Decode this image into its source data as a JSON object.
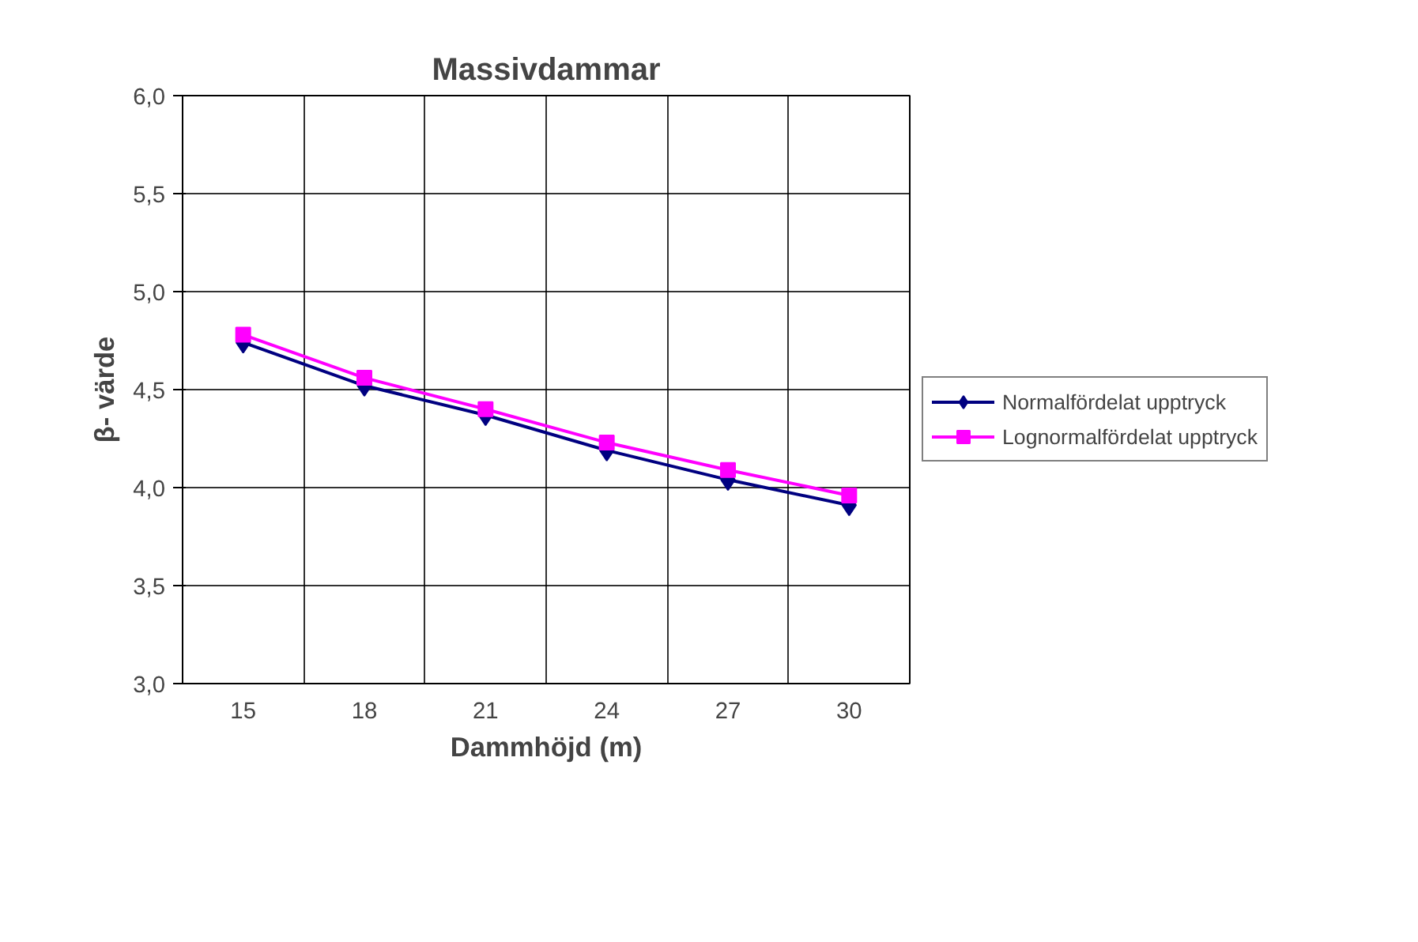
{
  "chart_data": {
    "type": "line",
    "title": "Massivdammar",
    "xlabel": "Dammhöjd (m)",
    "ylabel": "β- värde",
    "categories": [
      "15",
      "18",
      "21",
      "24",
      "27",
      "30"
    ],
    "series": [
      {
        "name": "Normalfördelat upptryck",
        "color": "#000080",
        "marker": "diamond",
        "values": [
          4.74,
          4.52,
          4.37,
          4.19,
          4.04,
          3.91
        ]
      },
      {
        "name": "Lognormalfördelat upptryck",
        "color": "#ff00ff",
        "marker": "square",
        "values": [
          4.78,
          4.56,
          4.4,
          4.23,
          4.09,
          3.96
        ]
      }
    ],
    "ylim": [
      3.0,
      6.0
    ],
    "yticks": [
      {
        "value": 3.0,
        "label": "3,0"
      },
      {
        "value": 3.5,
        "label": "3,5"
      },
      {
        "value": 4.0,
        "label": "4,0"
      },
      {
        "value": 4.5,
        "label": "4,5"
      },
      {
        "value": 5.0,
        "label": "5,0"
      },
      {
        "value": 5.5,
        "label": "5,5"
      },
      {
        "value": 6.0,
        "label": "6,0"
      }
    ],
    "grid": true,
    "legend": "right",
    "line_style": "solid"
  }
}
